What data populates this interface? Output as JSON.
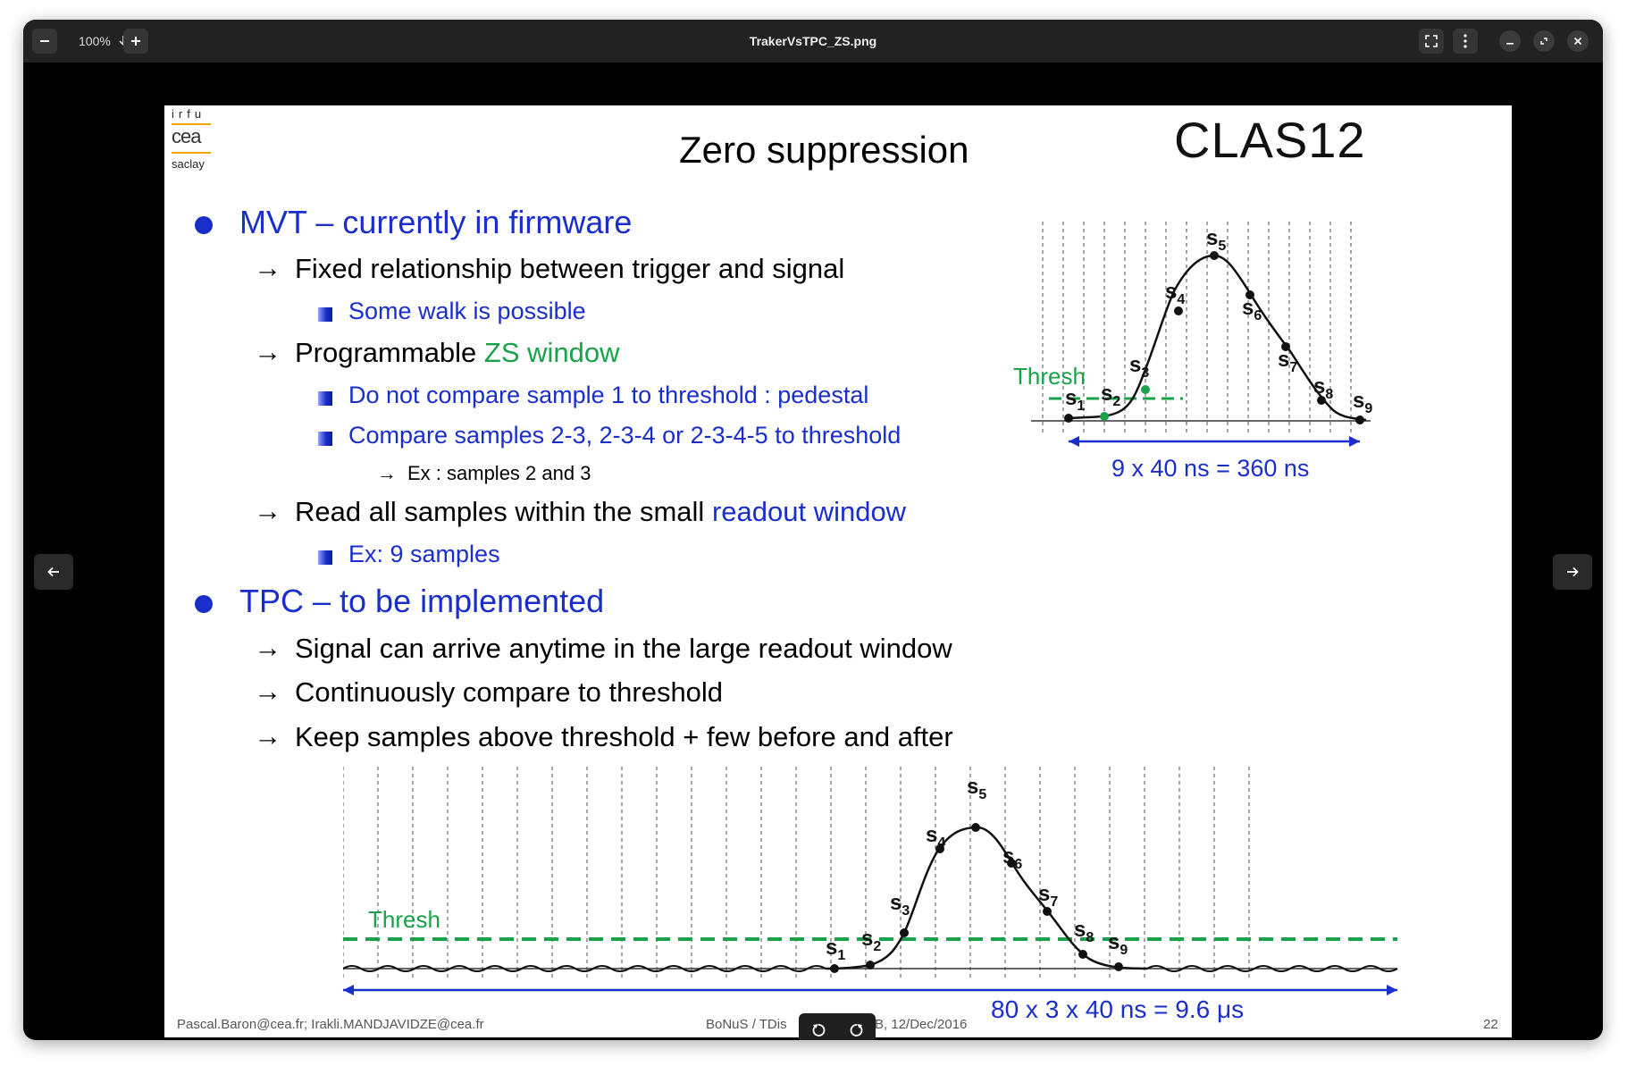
{
  "window": {
    "title": "TrakerVsTPC_ZS.png",
    "zoom": "100%"
  },
  "slide": {
    "logo_left": {
      "line1": "irfu",
      "line2": "cea",
      "line3": "saclay"
    },
    "logo_right": "CLAS12",
    "title": "Zero suppression",
    "mvt_heading": "MVT – currently in firmware",
    "mvt_item1": "Fixed relationship between trigger and signal",
    "mvt_item1_sub": "Some walk is possible",
    "mvt_item2_pre": "Programmable ",
    "mvt_item2_hl": "ZS window",
    "mvt_item2_sub1": "Do not compare sample 1 to threshold : pedestal",
    "mvt_item2_sub2": "Compare samples 2-3, 2-3-4 or 2-3-4-5 to threshold",
    "mvt_item2_sub3": "Ex : samples 2 and 3",
    "mvt_item3_pre": "Read all samples within the small ",
    "mvt_item3_hl": "readout window",
    "mvt_item3_sub": "Ex: 9 samples",
    "tpc_heading": "TPC – to be implemented",
    "tpc_item1": "Signal can arrive anytime in the large readout window",
    "tpc_item2": "Continuously compare to threshold",
    "tpc_item3": "Keep samples above threshold + few before and after",
    "arrow": "→",
    "fig_top": {
      "thresh": "Thresh",
      "caption": "9 x 40 ns = 360 ns"
    },
    "fig_bottom": {
      "thresh": "Thresh",
      "caption": "80 x 3 x 40 ns = 9.6 μs"
    },
    "sample_letter": "s",
    "sample_subs": [
      "1",
      "2",
      "3",
      "4",
      "5",
      "6",
      "7",
      "8",
      "9"
    ],
    "footer_left": "Pascal.Baron@cea.fr; Irakli.MANDJAVIDZE@cea.fr",
    "footer_mid_a": "BoNuS / TDis",
    "footer_mid_b": "B, 12/Dec/2016",
    "page_number": "22"
  },
  "colors": {
    "blue": "#1a2ecc",
    "green": "#1aa24a"
  }
}
